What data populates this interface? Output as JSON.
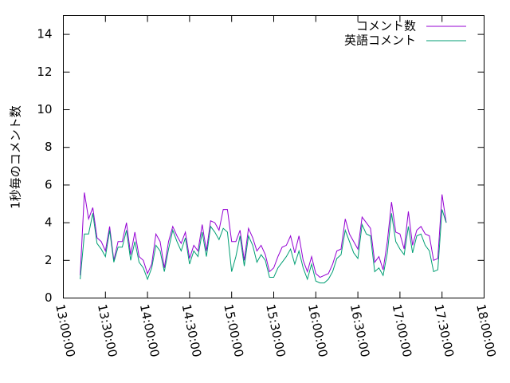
{
  "chart_data": {
    "type": "line",
    "ylabel": "1秒毎のコメント数",
    "x": [
      "13:12:00",
      "13:15:00",
      "13:18:00",
      "13:21:00",
      "13:24:00",
      "13:27:00",
      "13:30:00",
      "13:33:00",
      "13:36:00",
      "13:39:00",
      "13:42:00",
      "13:45:00",
      "13:48:00",
      "13:51:00",
      "13:54:00",
      "13:57:00",
      "14:00:00",
      "14:03:00",
      "14:06:00",
      "14:09:00",
      "14:12:00",
      "14:15:00",
      "14:18:00",
      "14:21:00",
      "14:24:00",
      "14:27:00",
      "14:30:00",
      "14:33:00",
      "14:36:00",
      "14:39:00",
      "14:42:00",
      "14:45:00",
      "14:48:00",
      "14:51:00",
      "14:54:00",
      "14:57:00",
      "15:00:00",
      "15:03:00",
      "15:06:00",
      "15:09:00",
      "15:12:00",
      "15:15:00",
      "15:18:00",
      "15:21:00",
      "15:24:00",
      "15:27:00",
      "15:30:00",
      "15:33:00",
      "15:36:00",
      "15:39:00",
      "15:42:00",
      "15:45:00",
      "15:48:00",
      "15:51:00",
      "15:54:00",
      "15:57:00",
      "16:00:00",
      "16:03:00",
      "16:06:00",
      "16:09:00",
      "16:12:00",
      "16:15:00",
      "16:18:00",
      "16:21:00",
      "16:24:00",
      "16:27:00",
      "16:30:00",
      "16:33:00",
      "16:36:00",
      "16:39:00",
      "16:42:00",
      "16:45:00",
      "16:48:00",
      "16:51:00",
      "16:54:00",
      "16:57:00",
      "17:00:00",
      "17:03:00",
      "17:06:00",
      "17:09:00",
      "17:12:00",
      "17:15:00",
      "17:18:00",
      "17:21:00",
      "17:24:00",
      "17:27:00",
      "17:30:00",
      "17:33:00"
    ],
    "series": [
      {
        "name": "コメント数",
        "color": "#9400d3",
        "values": [
          1.2,
          5.6,
          4.2,
          4.8,
          3.2,
          3.0,
          2.5,
          3.8,
          2.0,
          3.0,
          3.0,
          4.0,
          2.3,
          3.5,
          2.2,
          2.0,
          1.3,
          1.8,
          3.4,
          3.0,
          1.6,
          3.0,
          3.8,
          3.3,
          2.9,
          3.5,
          2.1,
          2.8,
          2.5,
          3.9,
          2.5,
          4.1,
          4.0,
          3.6,
          4.7,
          4.7,
          3.0,
          3.0,
          3.6,
          2.0,
          3.7,
          3.2,
          2.5,
          2.8,
          2.3,
          1.4,
          1.6,
          2.2,
          2.7,
          2.8,
          3.3,
          2.4,
          3.3,
          2.0,
          1.4,
          2.2,
          1.3,
          1.1,
          1.2,
          1.3,
          1.8,
          2.5,
          2.6,
          4.2,
          3.4,
          3.0,
          2.6,
          4.3,
          4.0,
          3.7,
          1.9,
          2.2,
          1.5,
          3.0,
          5.1,
          3.5,
          3.4,
          2.6,
          4.6,
          2.8,
          3.6,
          3.8,
          3.4,
          3.3,
          2.0,
          2.1,
          5.5,
          4.0
        ]
      },
      {
        "name": "英語コメント",
        "color": "#009e73",
        "values": [
          1.0,
          3.4,
          3.4,
          4.5,
          2.9,
          2.6,
          2.2,
          3.6,
          1.9,
          2.7,
          2.7,
          3.6,
          2.0,
          3.0,
          1.9,
          1.6,
          1.0,
          1.6,
          2.8,
          2.5,
          1.4,
          2.6,
          3.6,
          3.0,
          2.5,
          3.2,
          1.8,
          2.5,
          2.2,
          3.5,
          2.2,
          3.8,
          3.5,
          3.1,
          3.7,
          3.5,
          1.4,
          2.2,
          3.3,
          1.7,
          3.3,
          2.8,
          1.9,
          2.3,
          2.0,
          1.1,
          1.1,
          1.6,
          1.9,
          2.2,
          2.6,
          1.8,
          2.5,
          1.6,
          1.0,
          1.8,
          0.9,
          0.8,
          0.8,
          1.0,
          1.4,
          2.1,
          2.3,
          3.6,
          3.0,
          2.4,
          2.1,
          3.9,
          3.4,
          3.3,
          1.4,
          1.6,
          1.2,
          2.4,
          4.5,
          3.0,
          2.6,
          2.3,
          3.8,
          2.4,
          3.3,
          3.4,
          2.8,
          2.5,
          1.4,
          1.5,
          4.7,
          4.0
        ]
      }
    ],
    "xlim": [
      "13:00:00",
      "18:00:00"
    ],
    "xticks": [
      "13:00:00",
      "13:30:00",
      "14:00:00",
      "14:30:00",
      "15:00:00",
      "15:30:00",
      "16:00:00",
      "16:30:00",
      "17:00:00",
      "17:30:00",
      "18:00:00"
    ],
    "ylim": [
      0,
      15
    ],
    "yticks": [
      0,
      2,
      4,
      6,
      8,
      10,
      12,
      14
    ],
    "legend": "top-right"
  }
}
